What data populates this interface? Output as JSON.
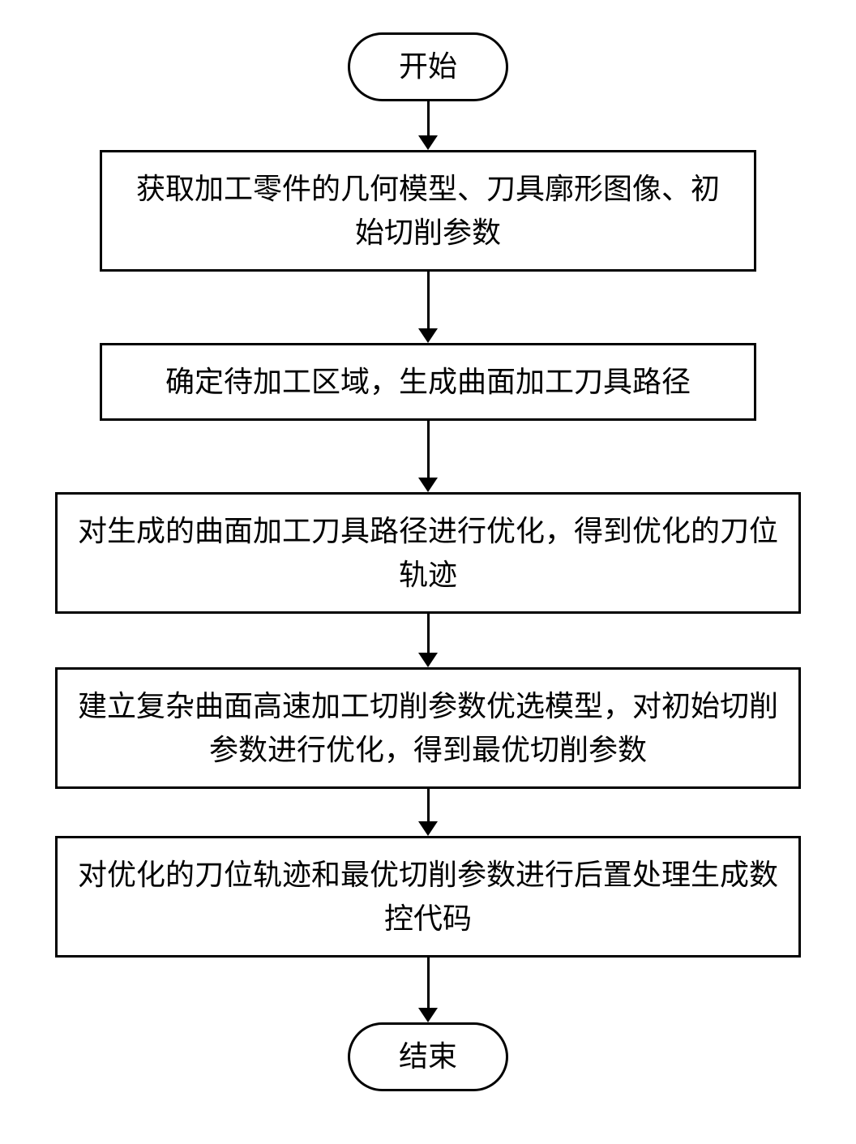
{
  "flowchart": {
    "type": "flowchart",
    "background_color": "#ffffff",
    "border_color": "#000000",
    "border_width": 3,
    "font_size": 36,
    "font_family": "SimSun",
    "text_color": "#000000",
    "arrow_color": "#000000",
    "nodes": {
      "start": {
        "shape": "terminal",
        "label": "开始"
      },
      "step1": {
        "shape": "process",
        "label": "获取加工零件的几何模型、刀具廓形图像、初始切削参数",
        "width_variant": "narrow"
      },
      "step2": {
        "shape": "process",
        "label": "确定待加工区域，生成曲面加工刀具路径",
        "width_variant": "narrow"
      },
      "step3": {
        "shape": "process",
        "label": "对生成的曲面加工刀具路径进行优化，得到优化的刀位轨迹",
        "width_variant": "full"
      },
      "step4": {
        "shape": "process",
        "label": "建立复杂曲面高速加工切削参数优选模型，对初始切削参数进行优化，得到最优切削参数",
        "width_variant": "full"
      },
      "step5": {
        "shape": "process",
        "label": "对优化的刀位轨迹和最优切削参数进行后置处理生成数控代码",
        "width_variant": "full"
      },
      "end": {
        "shape": "terminal",
        "label": "结束"
      }
    },
    "edges": [
      {
        "from": "start",
        "to": "step1",
        "length": 42
      },
      {
        "from": "step1",
        "to": "step2",
        "length": 70
      },
      {
        "from": "step2",
        "to": "step3",
        "length": 70
      },
      {
        "from": "step3",
        "to": "step4",
        "length": 48
      },
      {
        "from": "step4",
        "to": "step5",
        "length": 40
      },
      {
        "from": "step5",
        "to": "end",
        "length": 62
      }
    ]
  }
}
